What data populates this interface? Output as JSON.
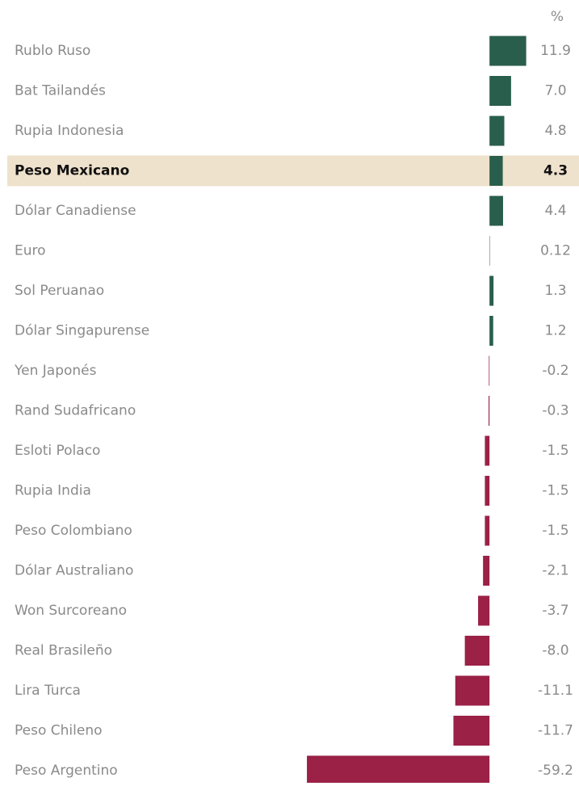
{
  "chart_data": {
    "type": "hbar",
    "unit_label": "%",
    "categories": [
      "Rublo Ruso",
      "Bat Tailandés",
      "Rupia Indonesia",
      "Peso Mexicano",
      "Dólar Canadiense",
      "Euro",
      "Sol Peruanao",
      "Dólar Singapurense",
      "Yen Japonés",
      "Rand Sudafricano",
      "Esloti Polaco",
      "Rupia India",
      "Peso Colombiano",
      "Dólar Australiano",
      "Won Surcoreano",
      "Real Brasileño",
      "Lira Turca",
      "Peso Chileno",
      "Peso Argentino"
    ],
    "values": [
      11.9,
      7.0,
      4.8,
      4.3,
      4.4,
      0.12,
      1.3,
      1.2,
      -0.2,
      -0.3,
      -1.5,
      -1.5,
      -1.5,
      -2.1,
      -3.7,
      -8.0,
      -11.1,
      -11.7,
      -59.2
    ],
    "value_labels": [
      "11.9",
      "7.0",
      "4.8",
      "4.3",
      "4.4",
      "0.12",
      "1.3",
      "1.2",
      "-0.2",
      "-0.3",
      "-1.5",
      "-1.5",
      "-1.5",
      "-2.1",
      "-3.7",
      "-8.0",
      "-11.1",
      "-11.7",
      "-59.2"
    ],
    "xlim": [
      -60,
      12
    ],
    "positive_color": "#2a5e4c",
    "negative_color": "#9b2146",
    "highlight": 3,
    "highlight_color": "#efe2cc"
  }
}
